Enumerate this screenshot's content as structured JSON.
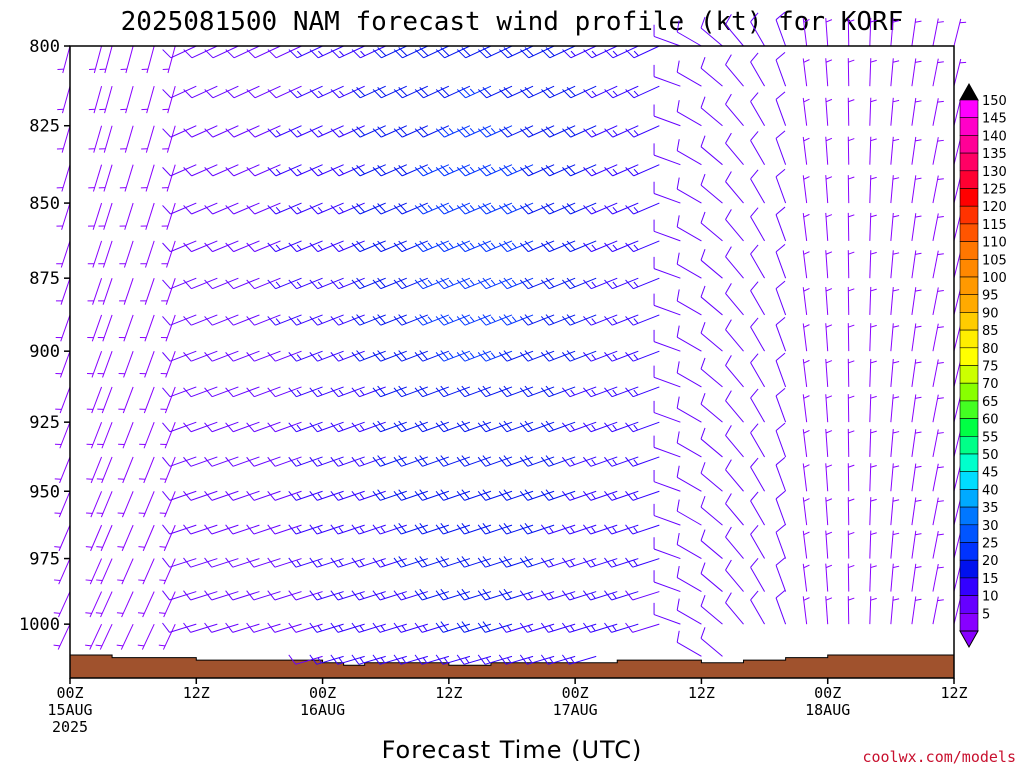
{
  "chart_data": {
    "type": "wind-barb time-height",
    "title": "2025081500 NAM forecast wind profile (kt) for KORF",
    "xlabel": "Forecast Time (UTC)",
    "ylabel": "",
    "credit": "coolwx.com/models",
    "x_unit": "hours after 2025-08-15 00Z",
    "xlim": [
      0,
      84
    ],
    "ylim": [
      1021,
      800
    ],
    "y_ticks": [
      "800",
      "825",
      "850",
      "875",
      "900",
      "925",
      "950",
      "975",
      "1000"
    ],
    "x_ticks": [
      {
        "line1": "00Z",
        "line2": "15AUG",
        "line3": "2025"
      },
      {
        "line1": "12Z",
        "line2": "",
        "line3": ""
      },
      {
        "line1": "00Z",
        "line2": "16AUG",
        "line3": ""
      },
      {
        "line1": "12Z",
        "line2": "",
        "line3": ""
      },
      {
        "line1": "00Z",
        "line2": "17AUG",
        "line3": ""
      },
      {
        "line1": "12Z",
        "line2": "",
        "line3": ""
      },
      {
        "line1": "00Z",
        "line2": "18AUG",
        "line3": ""
      },
      {
        "line1": "12Z",
        "line2": "",
        "line3": ""
      }
    ],
    "colorbar": {
      "labels": [
        "150",
        "145",
        "140",
        "135",
        "130",
        "125",
        "120",
        "115",
        "110",
        "105",
        "100",
        "95",
        "90",
        "85",
        "80",
        "75",
        "70",
        "65",
        "60",
        "55",
        "50",
        "45",
        "40",
        "35",
        "30",
        "25",
        "20",
        "15",
        "10",
        "5"
      ],
      "colors": [
        "#ff00ff",
        "#ff00c8",
        "#ff0096",
        "#ff0064",
        "#ff0032",
        "#ff0000",
        "#ff3300",
        "#ff5500",
        "#ff7700",
        "#ff8800",
        "#ff9900",
        "#ffaa00",
        "#ffcc00",
        "#ffee00",
        "#ffff00",
        "#ccff00",
        "#88ff00",
        "#44ff22",
        "#00ff44",
        "#00ff88",
        "#00ffcc",
        "#00ddff",
        "#00aaff",
        "#0077ff",
        "#0055ff",
        "#0033ff",
        "#0011ee",
        "#3300ff",
        "#6600ff",
        "#8800ff"
      ]
    },
    "surface_pressure": {
      "times": [
        0,
        4,
        8,
        12,
        16,
        20,
        24,
        26,
        28,
        32,
        36,
        40,
        44,
        48,
        52,
        56,
        60,
        64,
        68,
        72,
        76,
        80,
        84
      ],
      "values": [
        1012,
        1013,
        1013,
        1014,
        1014,
        1014,
        1015,
        1016,
        1015,
        1015,
        1016,
        1015,
        1015,
        1015,
        1014,
        1014,
        1015,
        1014,
        1013,
        1012,
        1012,
        1012,
        1012
      ]
    },
    "levels": [
      800,
      812.5,
      825,
      837.5,
      850,
      862.5,
      875,
      887.5,
      900,
      912.5,
      925,
      937.5,
      950,
      962.5,
      975,
      987.5,
      1000,
      1012.5
    ],
    "barb_times": [
      0,
      3,
      4,
      6,
      8,
      10,
      12,
      14,
      16,
      18,
      20,
      22,
      24,
      26,
      28,
      30,
      32,
      34,
      36,
      38,
      40,
      42,
      44,
      46,
      48,
      50,
      52,
      54,
      56,
      58,
      60,
      62,
      64,
      66,
      68,
      70,
      72,
      74,
      76,
      78,
      80,
      82,
      84
    ],
    "wind_regimes": [
      {
        "t_from": 0,
        "t_to": 10,
        "direction_deg": 200,
        "speed_kt": 5,
        "note": "light southerly"
      },
      {
        "t_from": 12,
        "t_to": 56,
        "direction_deg": 250,
        "speed_kt": 15,
        "note": "west-southwesterly, peak ~25 kt near 16-17AUG"
      },
      {
        "t_from": 56,
        "t_to": 68,
        "direction_deg": 330,
        "speed_kt": 10,
        "note": "veering to northwesterly"
      },
      {
        "t_from": 68,
        "t_to": 84,
        "direction_deg": 10,
        "speed_kt": 5,
        "note": "light northerly"
      }
    ]
  }
}
